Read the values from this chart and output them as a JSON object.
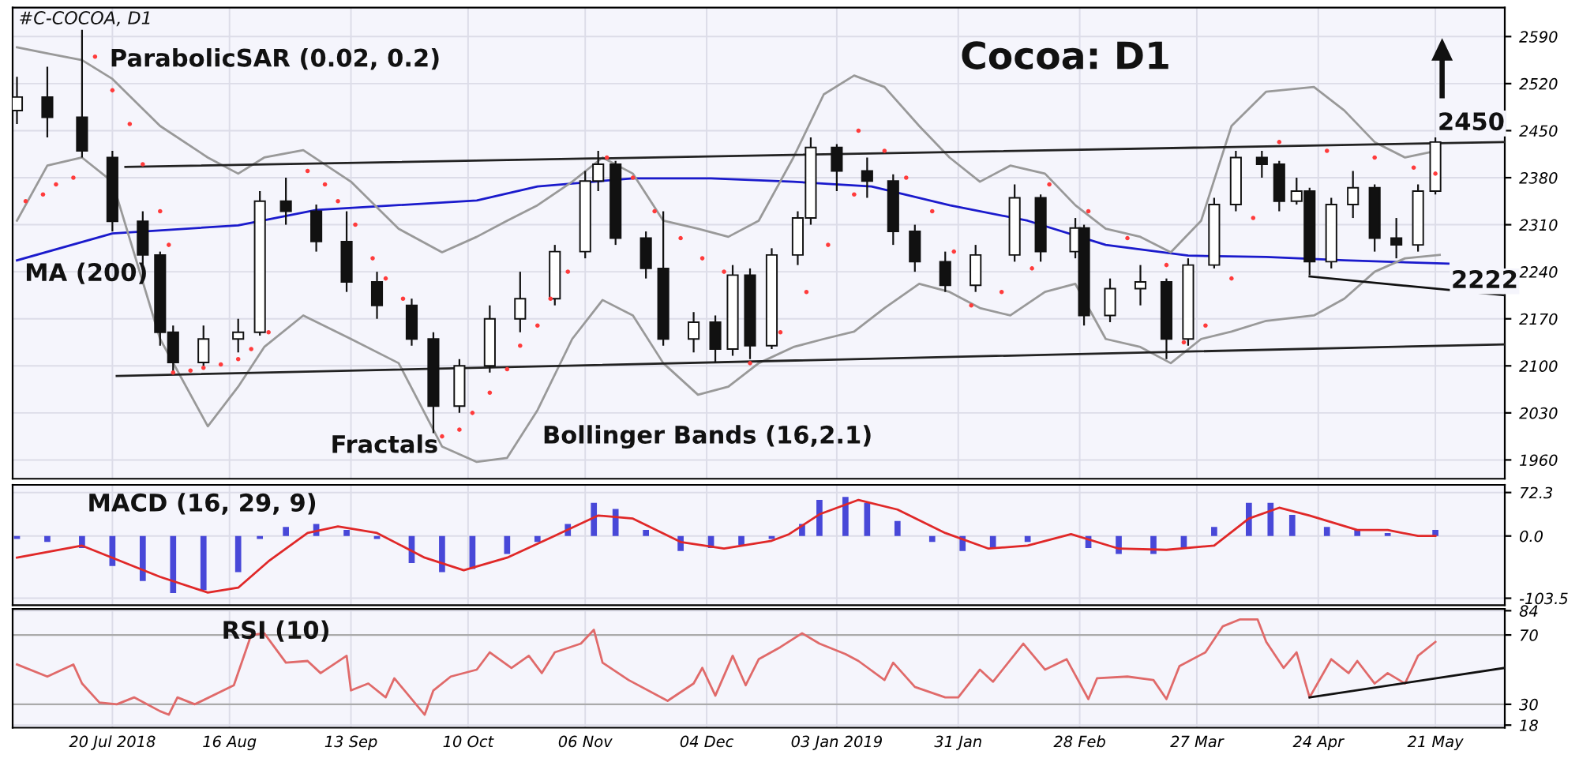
{
  "chart_data": [
    {
      "type": "candlestick",
      "title": "Cocoa: D1",
      "x": [
        "2018-06-28",
        "2018-07-05",
        "2018-07-13",
        "2018-07-20",
        "2018-07-27",
        "2018-07-31",
        "2018-08-03",
        "2018-08-10",
        "2018-08-18",
        "2018-08-23",
        "2018-08-29",
        "2018-09-05",
        "2018-09-12",
        "2018-09-19",
        "2018-09-27",
        "2018-10-02",
        "2018-10-08",
        "2018-10-15",
        "2018-10-22",
        "2018-10-30",
        "2018-11-06",
        "2018-11-09",
        "2018-11-13",
        "2018-11-20",
        "2018-11-24",
        "2018-12-01",
        "2018-12-06",
        "2018-12-10",
        "2018-12-14",
        "2018-12-19",
        "2018-12-25",
        "2018-12-28",
        "2019-01-03",
        "2019-01-10",
        "2019-01-16",
        "2019-01-21",
        "2019-01-28",
        "2019-02-04",
        "2019-02-13",
        "2019-02-19",
        "2019-02-27",
        "2019-03-01",
        "2019-03-07",
        "2019-03-14",
        "2019-03-20",
        "2019-03-25",
        "2019-03-31",
        "2019-04-05",
        "2019-04-11",
        "2019-04-15",
        "2019-04-19",
        "2019-04-22",
        "2019-04-27",
        "2019-05-02",
        "2019-05-07",
        "2019-05-12",
        "2019-05-17",
        "2019-05-21"
      ],
      "ohlc": [
        [
          2480,
          2530,
          2460,
          2500
        ],
        [
          2500,
          2545,
          2440,
          2470
        ],
        [
          2470,
          2600,
          2410,
          2420
        ],
        [
          2410,
          2420,
          2300,
          2315
        ],
        [
          2315,
          2330,
          2250,
          2265
        ],
        [
          2265,
          2270,
          2130,
          2150
        ],
        [
          2150,
          2160,
          2090,
          2105
        ],
        [
          2105,
          2160,
          2100,
          2140
        ],
        [
          2140,
          2170,
          2120,
          2150
        ],
        [
          2150,
          2360,
          2145,
          2345
        ],
        [
          2345,
          2380,
          2310,
          2330
        ],
        [
          2330,
          2340,
          2270,
          2285
        ],
        [
          2285,
          2330,
          2210,
          2225
        ],
        [
          2225,
          2240,
          2170,
          2190
        ],
        [
          2190,
          2200,
          2130,
          2140
        ],
        [
          2140,
          2150,
          2000,
          2040
        ],
        [
          2040,
          2110,
          2030,
          2100
        ],
        [
          2100,
          2190,
          2090,
          2170
        ],
        [
          2170,
          2240,
          2150,
          2200
        ],
        [
          2200,
          2280,
          2190,
          2270
        ],
        [
          2270,
          2390,
          2260,
          2375
        ],
        [
          2375,
          2420,
          2360,
          2400
        ],
        [
          2400,
          2405,
          2280,
          2290
        ],
        [
          2290,
          2300,
          2230,
          2245
        ],
        [
          2245,
          2330,
          2130,
          2140
        ],
        [
          2140,
          2180,
          2120,
          2165
        ],
        [
          2165,
          2175,
          2105,
          2125
        ],
        [
          2125,
          2250,
          2115,
          2235
        ],
        [
          2235,
          2245,
          2110,
          2130
        ],
        [
          2130,
          2275,
          2125,
          2265
        ],
        [
          2265,
          2330,
          2250,
          2320
        ],
        [
          2320,
          2440,
          2310,
          2425
        ],
        [
          2425,
          2430,
          2360,
          2390
        ],
        [
          2390,
          2410,
          2350,
          2375
        ],
        [
          2375,
          2385,
          2280,
          2300
        ],
        [
          2300,
          2310,
          2240,
          2255
        ],
        [
          2255,
          2270,
          2210,
          2220
        ],
        [
          2220,
          2280,
          2210,
          2265
        ],
        [
          2265,
          2370,
          2255,
          2350
        ],
        [
          2350,
          2355,
          2255,
          2270
        ],
        [
          2270,
          2320,
          2260,
          2305
        ],
        [
          2305,
          2310,
          2160,
          2175
        ],
        [
          2175,
          2230,
          2165,
          2215
        ],
        [
          2215,
          2250,
          2190,
          2225
        ],
        [
          2225,
          2230,
          2110,
          2140
        ],
        [
          2140,
          2260,
          2130,
          2250
        ],
        [
          2250,
          2350,
          2245,
          2340
        ],
        [
          2340,
          2420,
          2330,
          2410
        ],
        [
          2410,
          2420,
          2380,
          2400
        ],
        [
          2400,
          2405,
          2330,
          2345
        ],
        [
          2345,
          2380,
          2340,
          2360
        ],
        [
          2360,
          2365,
          2235,
          2255
        ],
        [
          2255,
          2350,
          2245,
          2340
        ],
        [
          2340,
          2390,
          2320,
          2365
        ],
        [
          2365,
          2370,
          2270,
          2290
        ],
        [
          2290,
          2320,
          2260,
          2280
        ],
        [
          2280,
          2370,
          2270,
          2360
        ],
        [
          2360,
          2440,
          2355,
          2433
        ]
      ],
      "series": [
        {
          "type": "line",
          "color": "#1a1acc",
          "x": [
            "2018-06-28",
            "2018-07-20",
            "2018-08-18",
            "2018-09-05",
            "2018-10-12",
            "2018-10-26",
            "2018-11-17",
            "2018-12-05",
            "2018-12-24",
            "2019-01-11",
            "2019-01-29",
            "2019-02-16",
            "2019-03-06",
            "2019-03-25",
            "2019-04-12",
            "2019-04-30",
            "2019-05-24"
          ],
          "values": [
            2257,
            2297,
            2309,
            2332,
            2346,
            2367,
            2379,
            2379,
            2374,
            2367,
            2339,
            2316,
            2280,
            2264,
            2262,
            2257,
            2252
          ]
        },
        {
          "type": "line",
          "color": "#999999",
          "x": [
            "2018-06-28",
            "2018-07-05",
            "2018-07-13",
            "2018-07-20",
            "2018-07-31",
            "2018-08-11",
            "2018-08-18",
            "2018-08-24",
            "2018-09-02",
            "2018-09-13",
            "2018-09-24",
            "2018-10-04",
            "2018-10-12",
            "2018-10-19",
            "2018-10-26",
            "2018-11-03",
            "2018-11-10",
            "2018-11-17",
            "2018-11-24",
            "2018-12-02",
            "2018-12-09",
            "2018-12-16",
            "2018-12-24",
            "2018-12-31",
            "2019-01-07",
            "2019-01-14",
            "2019-01-22",
            "2019-01-29",
            "2019-02-05",
            "2019-02-12",
            "2019-02-20",
            "2019-02-27",
            "2019-03-06",
            "2019-03-14",
            "2019-03-21",
            "2019-03-28",
            "2019-04-04",
            "2019-04-12",
            "2019-04-23",
            "2019-04-30",
            "2019-05-07",
            "2019-05-14",
            "2019-05-22"
          ],
          "values": [
            2574,
            2565,
            2555,
            2527,
            2457,
            2410,
            2386,
            2410,
            2421,
            2374,
            2304,
            2269,
            2292,
            2316,
            2339,
            2374,
            2410,
            2386,
            2316,
            2304,
            2292,
            2316,
            2410,
            2504,
            2532,
            2515,
            2457,
            2410,
            2374,
            2398,
            2386,
            2339,
            2304,
            2292,
            2269,
            2316,
            2457,
            2508,
            2515,
            2480,
            2433,
            2410,
            2421
          ]
        },
        {
          "type": "line",
          "color": "#999999",
          "x": [
            "2018-06-28",
            "2018-07-05",
            "2018-07-13",
            "2018-07-20",
            "2018-07-31",
            "2018-08-11",
            "2018-08-18",
            "2018-08-24",
            "2018-09-02",
            "2018-09-13",
            "2018-09-24",
            "2018-10-04",
            "2018-10-12",
            "2018-10-19",
            "2018-10-26",
            "2018-11-03",
            "2018-11-10",
            "2018-11-17",
            "2018-11-24",
            "2018-12-02",
            "2018-12-09",
            "2018-12-16",
            "2018-12-24",
            "2018-12-31",
            "2019-01-07",
            "2019-01-14",
            "2019-01-22",
            "2019-01-29",
            "2019-02-05",
            "2019-02-12",
            "2019-02-20",
            "2019-02-27",
            "2019-03-06",
            "2019-03-14",
            "2019-03-21",
            "2019-03-28",
            "2019-04-04",
            "2019-04-12",
            "2019-04-23",
            "2019-04-30",
            "2019-05-07",
            "2019-05-14",
            "2019-05-22"
          ],
          "values": [
            2316,
            2398,
            2410,
            2374,
            2140,
            2010,
            2069,
            2128,
            2175,
            2140,
            2104,
            1980,
            1957,
            1963,
            2034,
            2140,
            2198,
            2175,
            2104,
            2057,
            2069,
            2104,
            2128,
            2140,
            2151,
            2186,
            2222,
            2210,
            2186,
            2175,
            2210,
            2222,
            2140,
            2128,
            2104,
            2140,
            2151,
            2167,
            2175,
            2200,
            2240,
            2260,
            2265
          ]
        },
        {
          "type": "line",
          "color": "#222222",
          "x": [
            "2018-07-23",
            "2019-06-06"
          ],
          "values": [
            2396,
            2433
          ]
        },
        {
          "type": "line",
          "color": "#222222",
          "x": [
            "2018-07-21",
            "2019-06-06"
          ],
          "values": [
            2085,
            2132
          ]
        },
        {
          "type": "line",
          "color": "#111111",
          "x": [
            "2019-04-22",
            "2019-06-06"
          ],
          "values": [
            2233,
            2205
          ]
        },
        {
          "type": "scatter",
          "color": "#ff3b3b",
          "marker": "circle",
          "x": [
            "2018-06-30",
            "2018-07-04",
            "2018-07-07",
            "2018-07-11",
            "2018-07-16",
            "2018-07-20",
            "2018-07-24",
            "2018-07-27",
            "2018-07-31",
            "2018-08-02",
            "2018-08-03",
            "2018-08-07",
            "2018-08-10",
            "2018-08-14",
            "2018-08-18",
            "2018-08-21",
            "2018-08-25",
            "2018-09-03",
            "2018-09-07",
            "2018-09-10",
            "2018-09-14",
            "2018-09-18",
            "2018-09-21",
            "2018-09-25",
            "2018-10-04",
            "2018-10-08",
            "2018-10-11",
            "2018-10-15",
            "2018-10-19",
            "2018-10-22",
            "2018-10-26",
            "2018-10-29",
            "2018-11-02",
            "2018-11-11",
            "2018-11-17",
            "2018-11-22",
            "2018-11-28",
            "2018-12-03",
            "2018-12-08",
            "2018-12-14",
            "2018-12-21",
            "2018-12-27",
            "2019-01-01",
            "2019-01-07",
            "2019-01-08",
            "2019-01-14",
            "2019-01-19",
            "2019-01-25",
            "2019-01-30",
            "2019-02-03",
            "2019-02-10",
            "2019-02-17",
            "2019-02-21",
            "2019-03-02",
            "2019-03-11",
            "2019-03-20",
            "2019-03-24",
            "2019-03-29",
            "2019-04-04",
            "2019-04-09",
            "2019-04-15",
            "2019-04-26",
            "2019-05-07",
            "2019-05-16",
            "2019-05-21"
          ],
          "values": [
            2345,
            2355,
            2370,
            2380,
            2560,
            2510,
            2460,
            2400,
            2330,
            2280,
            2090,
            2093,
            2097,
            2102,
            2110,
            2125,
            2150,
            2390,
            2370,
            2345,
            2310,
            2260,
            2230,
            2200,
            1995,
            2005,
            2030,
            2060,
            2095,
            2130,
            2160,
            2200,
            2240,
            2410,
            2380,
            2330,
            2290,
            2260,
            2240,
            2104,
            2150,
            2210,
            2280,
            2355,
            2450,
            2420,
            2380,
            2330,
            2270,
            2190,
            2210,
            2245,
            2370,
            2330,
            2290,
            2250,
            2135,
            2160,
            2230,
            2320,
            2433,
            2420,
            2410,
            2395,
            2386
          ]
        }
      ],
      "annotations": [
        "#C-COCOA, D1",
        "ParabolicSAR (0.02, 0.2)",
        "MA (200)",
        "Fractals",
        "Bollinger Bands (16,2.1)",
        "2450",
        "2222"
      ],
      "xlim": [
        "2018-06-27",
        "2019-06-06"
      ],
      "ylim": [
        1932,
        2633
      ],
      "yticks": [
        2590,
        2520,
        2450,
        2380,
        2310,
        2240,
        2170,
        2100,
        2030,
        1960
      ],
      "tick_labels": "y",
      "grid": true
    },
    {
      "type": "bar",
      "series": [
        {
          "type": "bar",
          "color": "#4848d8",
          "x": [
            "2018-06-28",
            "2018-07-05",
            "2018-07-13",
            "2018-07-20",
            "2018-07-27",
            "2018-08-03",
            "2018-08-10",
            "2018-08-18",
            "2018-08-23",
            "2018-08-29",
            "2018-09-05",
            "2018-09-12",
            "2018-09-19",
            "2018-09-27",
            "2018-10-04",
            "2018-10-11",
            "2018-10-19",
            "2018-10-26",
            "2018-11-02",
            "2018-11-08",
            "2018-11-13",
            "2018-11-20",
            "2018-11-28",
            "2018-12-05",
            "2018-12-12",
            "2018-12-19",
            "2018-12-26",
            "2018-12-30",
            "2019-01-05",
            "2019-01-10",
            "2019-01-17",
            "2019-01-25",
            "2019-02-01",
            "2019-02-08",
            "2019-02-16",
            "2019-02-23",
            "2019-03-02",
            "2019-03-09",
            "2019-03-17",
            "2019-03-24",
            "2019-03-31",
            "2019-04-08",
            "2019-04-13",
            "2019-04-18",
            "2019-04-26",
            "2019-05-03",
            "2019-05-10",
            "2019-05-17",
            "2019-05-21"
          ],
          "values": [
            -5,
            -10,
            -20,
            -50,
            -75,
            -95,
            -90,
            -60,
            -5,
            15,
            20,
            10,
            -5,
            -45,
            -60,
            -55,
            -30,
            -10,
            20,
            55,
            45,
            10,
            -25,
            -20,
            -15,
            -5,
            20,
            60,
            65,
            55,
            25,
            -10,
            -25,
            -20,
            -10,
            0,
            -20,
            -30,
            -30,
            -20,
            15,
            55,
            55,
            35,
            15,
            10,
            5,
            null,
            10
          ]
        },
        {
          "type": "line",
          "color": "#e02828",
          "x": [
            "2018-06-28",
            "2018-07-13",
            "2018-07-31",
            "2018-08-11",
            "2018-08-18",
            "2018-08-25",
            "2018-09-03",
            "2018-09-10",
            "2018-09-19",
            "2018-09-30",
            "2018-10-09",
            "2018-10-19",
            "2018-10-29",
            "2018-11-09",
            "2018-11-17",
            "2018-11-28",
            "2018-12-08",
            "2018-12-19",
            "2018-12-23",
            "2018-12-30",
            "2019-01-08",
            "2019-01-17",
            "2019-01-28",
            "2019-02-07",
            "2019-02-16",
            "2019-02-26",
            "2019-03-09",
            "2019-03-20",
            "2019-03-31",
            "2019-04-08",
            "2019-04-15",
            "2019-04-22",
            "2019-05-03",
            "2019-05-10",
            "2019-05-17",
            "2019-05-21"
          ],
          "values": [
            -36,
            -16,
            -68,
            -94,
            -86,
            -42,
            5,
            16,
            5,
            -36,
            -57,
            -36,
            -3,
            34,
            29,
            -10,
            -21,
            -8,
            3,
            36,
            60,
            44,
            5,
            -21,
            -16,
            3,
            -21,
            -23,
            -16,
            29,
            47,
            34,
            10,
            10,
            0,
            0
          ]
        }
      ],
      "annotations": [
        "MACD (16, 29, 9)"
      ],
      "xlim": [
        "2018-06-27",
        "2019-06-06"
      ],
      "ylim": [
        -115,
        85
      ],
      "yticks": [
        72.3,
        {
          "value": 0,
          "label": "0.0"
        },
        -103.5
      ],
      "tick_labels": "y",
      "grid": true
    },
    {
      "type": "line",
      "series": [
        {
          "type": "line",
          "color": "#e06a6a",
          "x": [
            "2018-06-28",
            "2018-07-05",
            "2018-07-11",
            "2018-07-13",
            "2018-07-17",
            "2018-07-21",
            "2018-07-25",
            "2018-07-31",
            "2018-08-02",
            "2018-08-04",
            "2018-08-08",
            "2018-08-17",
            "2018-08-21",
            "2018-08-24",
            "2018-08-29",
            "2018-09-03",
            "2018-09-06",
            "2018-09-12",
            "2018-09-13",
            "2018-09-17",
            "2018-09-21",
            "2018-09-23",
            "2018-09-30",
            "2018-10-02",
            "2018-10-06",
            "2018-10-12",
            "2018-10-15",
            "2018-10-20",
            "2018-10-24",
            "2018-10-27",
            "2018-10-30",
            "2018-11-05",
            "2018-11-08",
            "2018-11-10",
            "2018-11-16",
            "2018-11-25",
            "2018-12-01",
            "2018-12-03",
            "2018-12-06",
            "2018-12-10",
            "2018-12-13",
            "2018-12-16",
            "2018-12-21",
            "2018-12-26",
            "2018-12-30",
            "2019-01-05",
            "2019-01-08",
            "2019-01-14",
            "2019-01-16",
            "2019-01-21",
            "2019-01-28",
            "2019-01-31",
            "2019-02-05",
            "2019-02-08",
            "2019-02-15",
            "2019-02-20",
            "2019-02-25",
            "2019-03-02",
            "2019-03-04",
            "2019-03-11",
            "2019-03-17",
            "2019-03-20",
            "2019-03-23",
            "2019-03-29",
            "2019-04-02",
            "2019-04-06",
            "2019-04-10",
            "2019-04-12",
            "2019-04-16",
            "2019-04-19",
            "2019-04-22",
            "2019-04-27",
            "2019-05-01",
            "2019-05-03",
            "2019-05-07",
            "2019-05-10",
            "2019-05-14",
            "2019-05-17",
            "2019-05-21"
          ],
          "values": [
            53,
            46,
            53,
            42,
            31,
            30,
            34,
            26,
            24,
            34,
            30,
            41,
            70,
            71,
            54,
            55,
            48,
            58,
            38,
            42,
            34,
            45,
            24,
            38,
            46,
            50,
            60,
            51,
            58,
            48,
            60,
            65,
            73,
            54,
            44,
            32,
            42,
            51,
            35,
            58,
            41,
            56,
            63,
            71,
            65,
            59,
            55,
            44,
            54,
            40,
            34,
            34,
            50,
            43,
            65,
            50,
            56,
            33,
            45,
            46,
            44,
            33,
            52,
            60,
            75,
            79,
            79,
            66,
            51,
            60,
            34,
            56,
            48,
            55,
            42,
            48,
            42,
            58,
            66
          ]
        },
        {
          "type": "line",
          "color": "#111111",
          "x": [
            "2019-04-22",
            "2019-06-06"
          ],
          "values": [
            34,
            51
          ]
        }
      ],
      "ref_lines": [
        {
          "axis": "y",
          "value": 70,
          "color": "#aaaaaa"
        },
        {
          "axis": "y",
          "value": 30,
          "color": "#aaaaaa"
        }
      ],
      "annotations": [
        "RSI (10)"
      ],
      "xlim": [
        "2018-06-27",
        "2019-06-06"
      ],
      "ylim": [
        16.5,
        85
      ],
      "yticks": [
        84,
        70,
        30,
        18
      ],
      "xticks": [
        {
          "value": "2018-07-20",
          "label": "20 Jul 2018"
        },
        {
          "value": "2018-08-16",
          "label": "16 Aug"
        },
        {
          "value": "2018-09-13",
          "label": "13 Sep"
        },
        {
          "value": "2018-10-10",
          "label": "10 Oct"
        },
        {
          "value": "2018-11-06",
          "label": "06 Nov"
        },
        {
          "value": "2018-12-04",
          "label": "04 Dec"
        },
        {
          "value": "2019-01-03",
          "label": "03 Jan 2019"
        },
        {
          "value": "2019-01-31",
          "label": "31 Jan"
        },
        {
          "value": "2019-02-28",
          "label": "28 Feb"
        },
        {
          "value": "2019-03-27",
          "label": "27 Mar"
        },
        {
          "value": "2019-04-24",
          "label": "24 Apr"
        },
        {
          "value": "2019-05-21",
          "label": "21 May"
        }
      ],
      "grid": true
    }
  ]
}
